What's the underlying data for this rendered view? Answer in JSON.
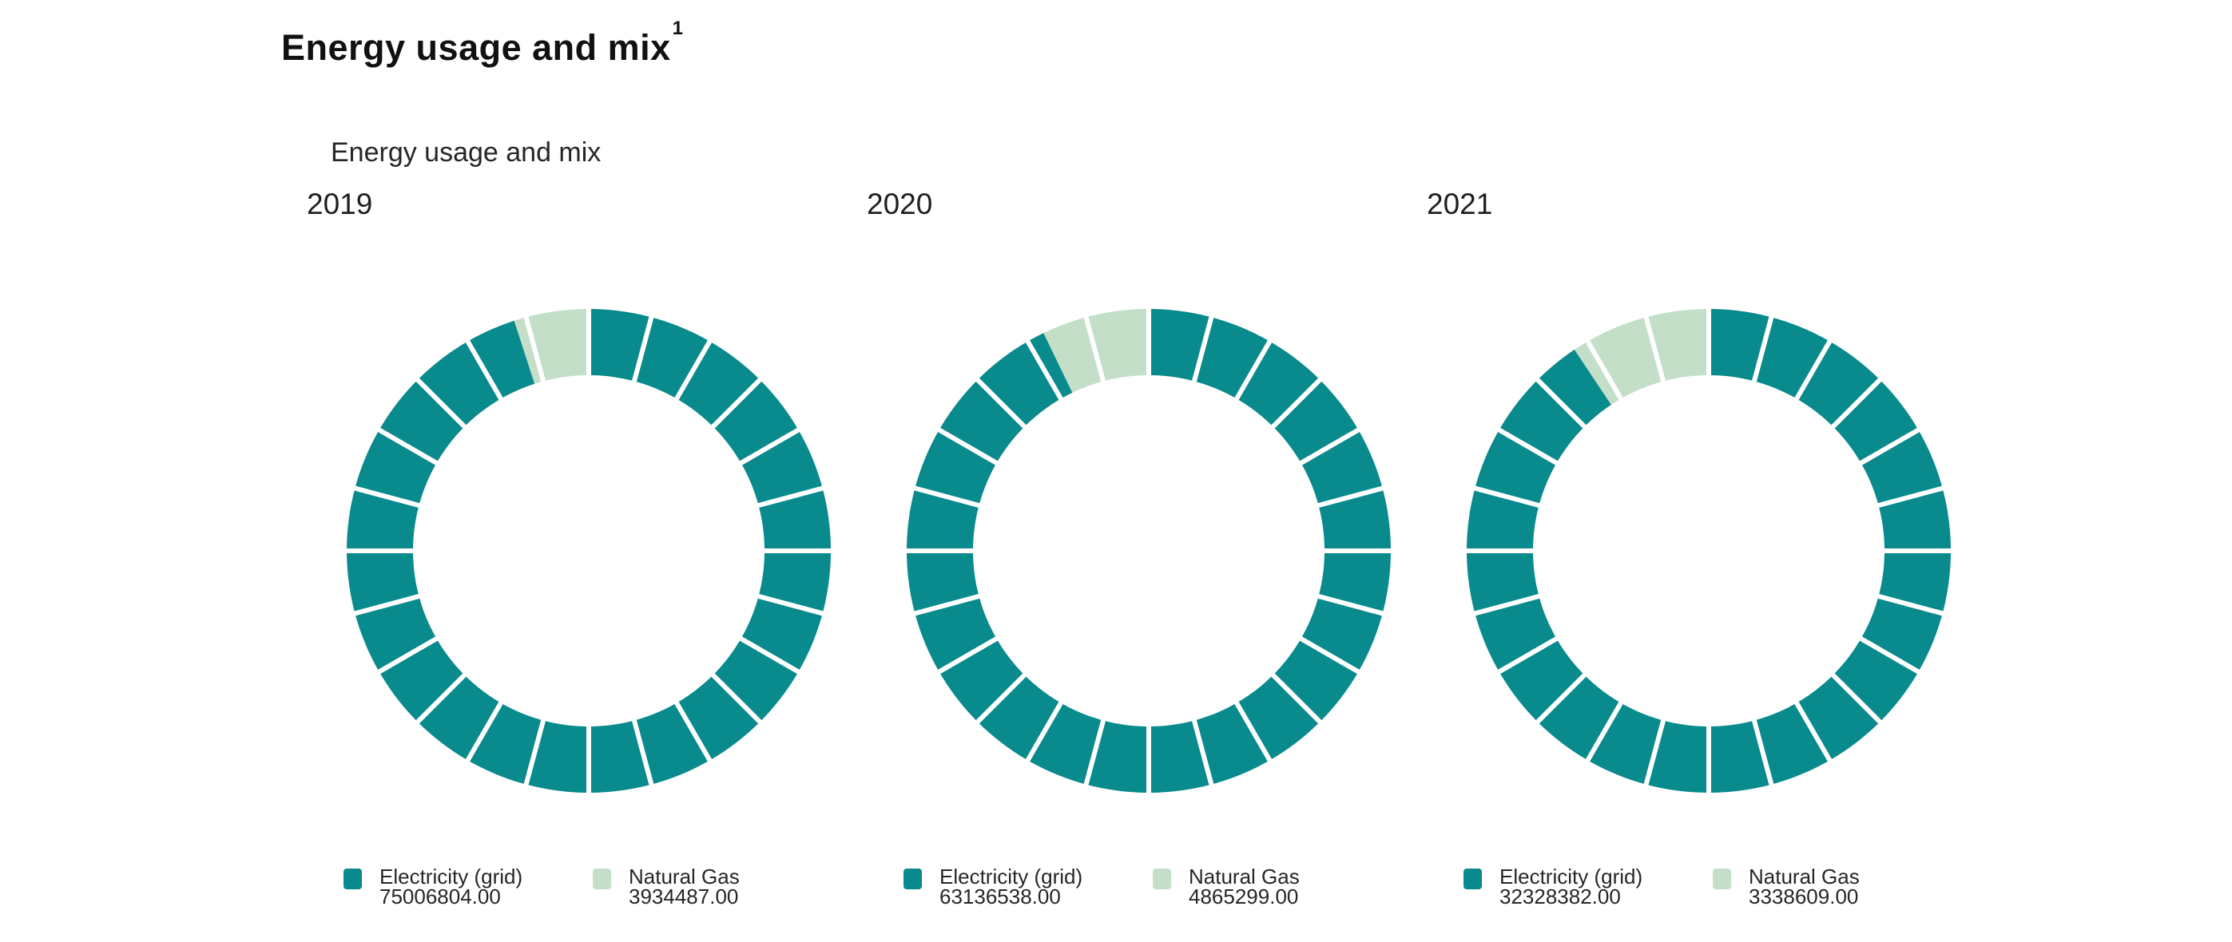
{
  "page": {
    "background": "#ffffff"
  },
  "title": {
    "text": "Energy usage and mix",
    "superscript": "1"
  },
  "subtitle": "Energy usage and mix",
  "colors": {
    "electricity": "#098a8d",
    "natural_gas": "#c4dfc8",
    "separator": "#ffffff"
  },
  "chart_data": [
    {
      "type": "pie",
      "variant": "donut",
      "title": "2019",
      "start_angle_deg": 0,
      "direction": "clockwise",
      "segment_tick_count": 24,
      "legend_position": "bottom",
      "series": [
        {
          "name": "Electricity (grid)",
          "value": 75006804.0,
          "value_label": "75006804.00",
          "color": "#098a8d"
        },
        {
          "name": "Natural Gas",
          "value": 3934487.0,
          "value_label": "3934487.00",
          "color": "#c4dfc8"
        }
      ]
    },
    {
      "type": "pie",
      "variant": "donut",
      "title": "2020",
      "start_angle_deg": 0,
      "direction": "clockwise",
      "segment_tick_count": 24,
      "legend_position": "bottom",
      "series": [
        {
          "name": "Electricity (grid)",
          "value": 63136538.0,
          "value_label": "63136538.00",
          "color": "#098a8d"
        },
        {
          "name": "Natural Gas",
          "value": 4865299.0,
          "value_label": "4865299.00",
          "color": "#c4dfc8"
        }
      ]
    },
    {
      "type": "pie",
      "variant": "donut",
      "title": "2021",
      "start_angle_deg": 0,
      "direction": "clockwise",
      "segment_tick_count": 24,
      "legend_position": "bottom",
      "series": [
        {
          "name": "Electricity (grid)",
          "value": 32328382.0,
          "value_label": "32328382.00",
          "color": "#098a8d"
        },
        {
          "name": "Natural Gas",
          "value": 3338609.0,
          "value_label": "3338609.00",
          "color": "#c4dfc8"
        }
      ]
    }
  ]
}
